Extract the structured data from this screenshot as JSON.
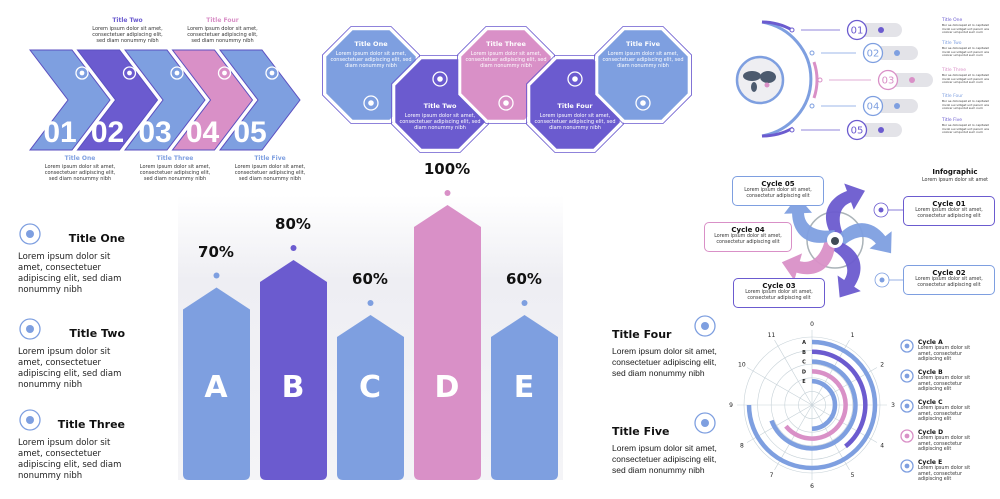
{
  "colors": {
    "blue": "#7e9fe0",
    "purple": "#6b5bcf",
    "pink": "#d990c7",
    "light": "#f1f1f6",
    "line": "#b9c4e6"
  },
  "lorem_short": "Lorem ipsum dolor sit amet, consectetuer adipiscing elit, sed diam nonummy nibh",
  "chevrons": {
    "items": [
      {
        "num": "01",
        "title": "Title One",
        "text": "Lorem ipsum dolor sit amet, consectetuer adipiscing elit, sed diam nonummy nibh",
        "icon": "stopwatch-icon",
        "color": "blue"
      },
      {
        "num": "02",
        "title": "Title Two",
        "text": "Lorem ipsum dolor sit amet, consectetuer adipiscing elit, sed diam nonummy nibh",
        "icon": "people-network-icon",
        "color": "purple"
      },
      {
        "num": "03",
        "title": "Title Three",
        "text": "Lorem ipsum dolor sit amet, consectetuer adipiscing elit, sed diam nonummy nibh",
        "icon": "lightbulb-icon",
        "color": "blue"
      },
      {
        "num": "04",
        "title": "Title Four",
        "text": "Lorem ipsum dolor sit amet, consectetuer adipiscing elit, sed diam nonummy nibh",
        "icon": "bar-chart-icon",
        "color": "pink"
      },
      {
        "num": "05",
        "title": "Title Five",
        "text": "Lorem ipsum dolor sit amet, consectetuer adipiscing elit, sed diam nonummy nibh",
        "icon": "dollar-cycle-icon",
        "color": "blue"
      }
    ]
  },
  "octagons": {
    "items": [
      {
        "title": "Title One",
        "text": "Lorem ipsum dolor sit amet, consectetuer adipiscing elit, sed diam nonummy nibh",
        "icon": "stopwatch-icon",
        "color": "blue"
      },
      {
        "title": "Title Two",
        "text": "Lorem ipsum dolor sit amet, consectetuer adipiscing elit, sed diam nonummy nibh",
        "icon": "people-network-icon",
        "color": "purple"
      },
      {
        "title": "Title Three",
        "text": "Lorem ipsum dolor sit amet, consectetuer adipiscing elit, sed diam nonummy nibh",
        "icon": "bar-chart-icon",
        "color": "pink"
      },
      {
        "title": "Title Four",
        "text": "Lorem ipsum dolor sit amet, consectetuer adipiscing elit, sed diam nonummy nibh",
        "icon": "heads-icon",
        "color": "purple"
      },
      {
        "title": "Title Five",
        "text": "Lorem ipsum dolor sit amet, consectetuer adipiscing elit, sed diam nonummy nibh",
        "icon": "dollar-cycle-icon",
        "color": "blue"
      }
    ]
  },
  "world": {
    "icon": "world-map-icon",
    "items": [
      {
        "num": "01",
        "title": "Title One",
        "text": "Bor se dolorepat et ro capitalet mvoli sui villiget unt parum ara volorer umquidut sum num",
        "color": "purple"
      },
      {
        "num": "02",
        "title": "Title Two",
        "text": "Bor se dolorepat et ro capitalet mvoli sui villiget unt parum ara volorer umquidut sum num",
        "color": "blue"
      },
      {
        "num": "03",
        "title": "Title Three",
        "text": "Bor se dolorepat et ro capitalet mvoli sui villiget unt parum ara volorer umquidut sum num",
        "color": "pink"
      },
      {
        "num": "04",
        "title": "Title Four",
        "text": "Bor se dolorepat et ro capitalet mvoli sui villiget unt parum ara volorer umquidut sum num",
        "color": "blue"
      },
      {
        "num": "05",
        "title": "Title Five",
        "text": "Bor se dolorepat et ro capitalet mvoli sui villiget unt parum ara volorer umquidut sum num",
        "color": "purple"
      }
    ]
  },
  "cycle": {
    "title": "Infographic",
    "subtitle": "Lorem ipsum dolor sit amet",
    "center_icon": "money-bag-icon",
    "items": [
      {
        "title": "Cycle 01",
        "text": "Lorem ipsum dolor sit amet, consectetur adipiscing elit",
        "color": "purple"
      },
      {
        "title": "Cycle 02",
        "text": "Lorem ipsum dolor sit amet, consectetur adipiscing elit",
        "color": "blue"
      },
      {
        "title": "Cycle 03",
        "text": "Lorem ipsum dolor sit amet, consectetur adipiscing elit",
        "color": "purple"
      },
      {
        "title": "Cycle 04",
        "text": "Lorem ipsum dolor sit amet, consectetur adipiscing elit",
        "color": "pink"
      },
      {
        "title": "Cycle 05",
        "text": "Lorem ipsum dolor sit amet, consectetur adipiscing elit",
        "color": "blue"
      }
    ]
  },
  "left_list": [
    {
      "title": "Title One",
      "text": "Lorem ipsum dolor sit amet, consectetuer adipiscing elit, sed diam nonummy nibh",
      "icon": "stopwatch-icon"
    },
    {
      "title": "Title Two",
      "text": "Lorem ipsum dolor sit amet, consectetuer adipiscing elit, sed diam nonummy nibh",
      "icon": "people-network-icon"
    },
    {
      "title": "Title Three",
      "text": "Lorem ipsum dolor sit amet, consectetuer adipiscing elit, sed diam nonummy nibh",
      "icon": "dollar-cycle-icon"
    }
  ],
  "right_list": [
    {
      "title": "Title Four",
      "text": "Lorem ipsum dolor sit amet, consectetuer adipiscing elit, sed diam nonummy nibh",
      "icon": "heads-icon"
    },
    {
      "title": "Title Five",
      "text": "Lorem ipsum dolor sit amet, consectetuer adipiscing elit, sed diam nonummy nibh",
      "icon": "bar-chart-icon"
    }
  ],
  "chart_data": [
    {
      "type": "bar",
      "categories": [
        "A",
        "B",
        "C",
        "D",
        "E"
      ],
      "values": [
        70,
        80,
        60,
        100,
        60
      ],
      "value_labels": [
        "70%",
        "80%",
        "60%",
        "100%",
        "60%"
      ],
      "colors": [
        "blue",
        "purple",
        "blue",
        "pink",
        "blue"
      ],
      "ylim": [
        0,
        100
      ],
      "grid": false
    },
    {
      "type": "radial-bar",
      "angle_labels": [
        "0",
        "1",
        "2",
        "3",
        "4",
        "5",
        "6",
        "7",
        "8",
        "9",
        "10",
        "11"
      ],
      "categories": [
        "A",
        "B",
        "C",
        "D",
        "E"
      ],
      "values": [
        9,
        4.7,
        8.3,
        7.7,
        6
      ],
      "angle_max": 12,
      "colors": [
        "blue",
        "purple",
        "blue",
        "pink",
        "blue"
      ],
      "legend": [
        {
          "title": "Cycle A",
          "text": "Lorem ipsum dolor sit amet, consectetur adipiscing elit",
          "icon": "target-flower-icon"
        },
        {
          "title": "Cycle B",
          "text": "Lorem ipsum dolor sit amet, consectetur adipiscing elit",
          "icon": "handshake-icon"
        },
        {
          "title": "Cycle C",
          "text": "Lorem ipsum dolor sit amet, consectetur adipiscing elit",
          "icon": "hands-icon"
        },
        {
          "title": "Cycle D",
          "text": "Lorem ipsum dolor sit amet, consectetur adipiscing elit",
          "icon": "magnifier-icon"
        },
        {
          "title": "Cycle E",
          "text": "Lorem ipsum dolor sit amet, consectetur adipiscing elit",
          "icon": "presentation-icon"
        }
      ],
      "legend_position": "right"
    }
  ]
}
